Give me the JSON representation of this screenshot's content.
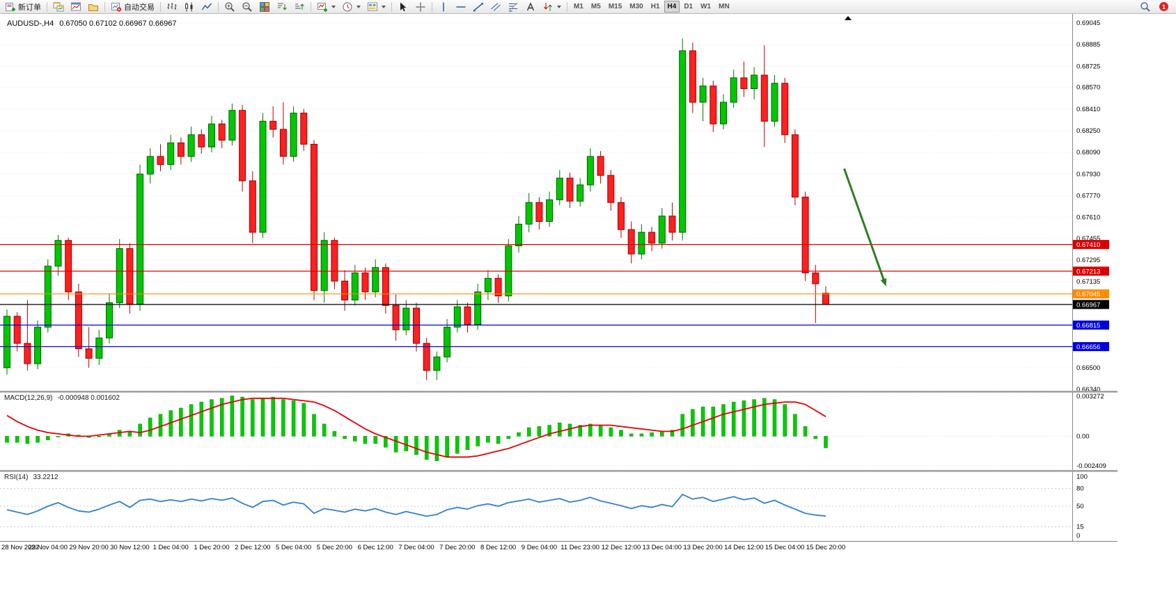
{
  "toolbar": {
    "new_order_label": "新订单",
    "autotrading_label": "自动交易",
    "timeframes": [
      "M1",
      "M5",
      "M15",
      "M30",
      "H1",
      "H4",
      "D1",
      "W1",
      "MN"
    ],
    "active_timeframe": "H4",
    "notification_count": "1"
  },
  "chart_data": [
    {
      "type": "candlestick",
      "title": "AUDUSD-,H4",
      "ohlc_text": "0.67050 0.67102 0.66967 0.66967",
      "current": {
        "open": 0.6705,
        "high": 0.67102,
        "low": 0.66967,
        "close": 0.66967
      },
      "ylim": [
        0.6633,
        0.69112
      ],
      "price_axis_labels": [
        "0.69045",
        "0.68885",
        "0.68725",
        "0.68570",
        "0.68410",
        "0.68250",
        "0.68090",
        "0.67930",
        "0.67770",
        "0.67610",
        "0.67455",
        "0.67295",
        "0.67135",
        "0.66975",
        "0.66815",
        "0.66656",
        "0.66500",
        "0.66340"
      ],
      "time_labels": [
        "28 Nov 2022",
        "29 Nov 04:00",
        "29 Nov 20:00",
        "30 Nov 12:00",
        "1 Dec 04:00",
        "1 Dec 20:00",
        "2 Dec 12:00",
        "5 Dec 04:00",
        "5 Dec 20:00",
        "6 Dec 12:00",
        "7 Dec 04:00",
        "7 Dec 20:00",
        "8 Dec 12:00",
        "9 Dec 04:00",
        "11 Dec 23:00",
        "12 Dec 12:00",
        "13 Dec 04:00",
        "13 Dec 20:00",
        "14 Dec 12:00",
        "15 Dec 04:00",
        "15 Dec 20:00"
      ],
      "candles": [
        [
          0.665,
          0.6693,
          0.6645,
          0.6688
        ],
        [
          0.6688,
          0.6691,
          0.6662,
          0.6668
        ],
        [
          0.6668,
          0.67,
          0.6648,
          0.6653
        ],
        [
          0.6653,
          0.6685,
          0.6649,
          0.668
        ],
        [
          0.668,
          0.673,
          0.6676,
          0.6725
        ],
        [
          0.6725,
          0.6748,
          0.6718,
          0.6744
        ],
        [
          0.6744,
          0.6746,
          0.67,
          0.6706
        ],
        [
          0.6706,
          0.6712,
          0.6658,
          0.6664
        ],
        [
          0.6664,
          0.668,
          0.665,
          0.6657
        ],
        [
          0.6657,
          0.6678,
          0.6652,
          0.6672
        ],
        [
          0.6672,
          0.6705,
          0.6668,
          0.6698
        ],
        [
          0.6698,
          0.6745,
          0.6694,
          0.6738
        ],
        [
          0.6738,
          0.6742,
          0.669,
          0.6697
        ],
        [
          0.6697,
          0.68,
          0.6692,
          0.6793
        ],
        [
          0.6793,
          0.6812,
          0.6786,
          0.6806
        ],
        [
          0.6806,
          0.6815,
          0.6795,
          0.68
        ],
        [
          0.68,
          0.6822,
          0.6796,
          0.6816
        ],
        [
          0.6816,
          0.682,
          0.68,
          0.6806
        ],
        [
          0.6806,
          0.6828,
          0.6802,
          0.6822
        ],
        [
          0.6822,
          0.6826,
          0.6808,
          0.6813
        ],
        [
          0.6813,
          0.6836,
          0.6809,
          0.683
        ],
        [
          0.683,
          0.6833,
          0.6812,
          0.6818
        ],
        [
          0.6818,
          0.6845,
          0.6814,
          0.684
        ],
        [
          0.684,
          0.6844,
          0.678,
          0.6788
        ],
        [
          0.6788,
          0.6795,
          0.6742,
          0.675
        ],
        [
          0.675,
          0.6838,
          0.6746,
          0.6832
        ],
        [
          0.6832,
          0.6843,
          0.682,
          0.6826
        ],
        [
          0.6826,
          0.6846,
          0.68,
          0.6806
        ],
        [
          0.6806,
          0.6843,
          0.6802,
          0.6838
        ],
        [
          0.6838,
          0.6841,
          0.681,
          0.6815
        ],
        [
          0.6815,
          0.6818,
          0.67,
          0.6707
        ],
        [
          0.6707,
          0.675,
          0.6698,
          0.6744
        ],
        [
          0.6744,
          0.6746,
          0.6708,
          0.6714
        ],
        [
          0.6714,
          0.6722,
          0.6692,
          0.67
        ],
        [
          0.67,
          0.6726,
          0.6696,
          0.672
        ],
        [
          0.672,
          0.6724,
          0.67,
          0.6706
        ],
        [
          0.6706,
          0.673,
          0.6702,
          0.6724
        ],
        [
          0.6724,
          0.6727,
          0.669,
          0.6696
        ],
        [
          0.6696,
          0.6704,
          0.667,
          0.6678
        ],
        [
          0.6678,
          0.67,
          0.6674,
          0.6694
        ],
        [
          0.6694,
          0.6698,
          0.6662,
          0.6668
        ],
        [
          0.6668,
          0.6672,
          0.6641,
          0.6648
        ],
        [
          0.6648,
          0.6662,
          0.6641,
          0.6658
        ],
        [
          0.6658,
          0.6686,
          0.6654,
          0.668
        ],
        [
          0.668,
          0.67,
          0.6676,
          0.6695
        ],
        [
          0.6695,
          0.6698,
          0.6676,
          0.6682
        ],
        [
          0.6682,
          0.6712,
          0.6678,
          0.6706
        ],
        [
          0.6706,
          0.6722,
          0.67,
          0.6716
        ],
        [
          0.6716,
          0.6719,
          0.6698,
          0.6703
        ],
        [
          0.6703,
          0.6745,
          0.6699,
          0.674
        ],
        [
          0.674,
          0.6762,
          0.6735,
          0.6756
        ],
        [
          0.6756,
          0.6779,
          0.675,
          0.6772
        ],
        [
          0.6772,
          0.6776,
          0.6752,
          0.6758
        ],
        [
          0.6758,
          0.678,
          0.6754,
          0.6774
        ],
        [
          0.6774,
          0.6796,
          0.677,
          0.679
        ],
        [
          0.679,
          0.6794,
          0.6768,
          0.6773
        ],
        [
          0.6773,
          0.679,
          0.6769,
          0.6785
        ],
        [
          0.6785,
          0.6812,
          0.678,
          0.6806
        ],
        [
          0.6806,
          0.681,
          0.6786,
          0.6792
        ],
        [
          0.6792,
          0.6796,
          0.6766,
          0.6772
        ],
        [
          0.6772,
          0.6776,
          0.6746,
          0.6752
        ],
        [
          0.6752,
          0.6758,
          0.6727,
          0.6734
        ],
        [
          0.6734,
          0.6756,
          0.673,
          0.675
        ],
        [
          0.675,
          0.6754,
          0.6736,
          0.6742
        ],
        [
          0.6742,
          0.6768,
          0.6738,
          0.6762
        ],
        [
          0.6762,
          0.6772,
          0.6744,
          0.675
        ],
        [
          0.675,
          0.6893,
          0.6744,
          0.6884
        ],
        [
          0.6884,
          0.689,
          0.6838,
          0.6846
        ],
        [
          0.6846,
          0.6864,
          0.6832,
          0.6858
        ],
        [
          0.6858,
          0.6862,
          0.6824,
          0.683
        ],
        [
          0.683,
          0.6852,
          0.6826,
          0.6846
        ],
        [
          0.6846,
          0.687,
          0.6842,
          0.6864
        ],
        [
          0.6864,
          0.6876,
          0.685,
          0.6856
        ],
        [
          0.6856,
          0.6872,
          0.6848,
          0.6866
        ],
        [
          0.6866,
          0.6888,
          0.6813,
          0.6832
        ],
        [
          0.6832,
          0.6866,
          0.6828,
          0.686
        ],
        [
          0.686,
          0.6864,
          0.6816,
          0.6822
        ],
        [
          0.6822,
          0.6826,
          0.677,
          0.6776
        ],
        [
          0.6776,
          0.678,
          0.6714,
          0.672
        ],
        [
          0.672,
          0.6726,
          0.6683,
          0.6712
        ],
        [
          0.6705,
          0.67102,
          0.66967,
          0.66967
        ]
      ],
      "up_color": "#00C800",
      "down_color": "#FF2020",
      "hlines": [
        {
          "price": 0.6741,
          "label": "0.67410",
          "color": "#dd0000"
        },
        {
          "price": 0.67213,
          "label": "0.67213",
          "color": "#dd0000"
        },
        {
          "price": 0.67045,
          "label": "0.67045",
          "color": "#ff8c00"
        },
        {
          "price": 0.66967,
          "label": "0.66967",
          "color": "#000000"
        },
        {
          "price": 0.66815,
          "label": "0.66815",
          "color": "#0000dd"
        },
        {
          "price": 0.66656,
          "label": "0.66656",
          "color": "#0000dd"
        }
      ],
      "arrow": {
        "x1_bar": 81.8,
        "price1": 0.6797,
        "x2_bar": 85.8,
        "price2": 0.6712,
        "color": "#2E7D1F"
      }
    },
    {
      "type": "macd",
      "label": "MACD(12,26,9)",
      "values_text": "-0.000948 0.001602",
      "ylim": [
        -0.00276,
        0.0036
      ],
      "axis_labels": [
        "0.003272",
        "0.00",
        "-0.002409"
      ],
      "unit": 0.0001,
      "histogram_1e4": [
        -5,
        -5,
        -6,
        -5,
        -3,
        0,
        2,
        1,
        -1,
        0,
        2,
        5,
        4,
        10,
        15,
        18,
        21,
        23,
        26,
        28,
        30,
        31,
        33,
        32,
        30,
        31,
        32,
        30,
        29,
        27,
        18,
        10,
        4,
        -2,
        -4,
        -6,
        -6,
        -9,
        -13,
        -12,
        -15,
        -19,
        -20,
        -17,
        -14,
        -11,
        -8,
        -5,
        -6,
        -2,
        3,
        7,
        8,
        9,
        11,
        10,
        9,
        10,
        9,
        7,
        5,
        2,
        2,
        3,
        4,
        5,
        18,
        22,
        24,
        24,
        26,
        28,
        29,
        30,
        31,
        30,
        26,
        18,
        8,
        -2,
        -9.48
      ],
      "signal_1e4": [
        17,
        12,
        8,
        5,
        3,
        2,
        1,
        0,
        0,
        1,
        2,
        3,
        4,
        3,
        5,
        8,
        11,
        14,
        17,
        20,
        23,
        26,
        28,
        30,
        31,
        31,
        31,
        31,
        30,
        29,
        28,
        25,
        21,
        16,
        11,
        6,
        2,
        -1,
        -4,
        -7,
        -10,
        -13,
        -15,
        -17,
        -17,
        -17,
        -16,
        -14,
        -12,
        -10,
        -7,
        -4,
        -1,
        2,
        4,
        6,
        8,
        9,
        9,
        9,
        8,
        7,
        6,
        5,
        4,
        4,
        6,
        9,
        12,
        15,
        18,
        20,
        22,
        24,
        26,
        27,
        28,
        28,
        26,
        21,
        16.02
      ],
      "histogram_color": "#00CC00",
      "signal_color": "#e60000"
    },
    {
      "type": "line",
      "label": "RSI(14)",
      "value_text": "33.2212",
      "ylim": [
        -9,
        109
      ],
      "levels": [
        80,
        50,
        15
      ],
      "axis_labels": [
        "100",
        "80",
        "50",
        "15",
        "0"
      ],
      "values": [
        44,
        40,
        36,
        42,
        50,
        56,
        48,
        42,
        40,
        45,
        52,
        58,
        48,
        60,
        62,
        58,
        61,
        58,
        62,
        59,
        63,
        60,
        64,
        55,
        48,
        58,
        60,
        52,
        57,
        54,
        38,
        46,
        43,
        40,
        45,
        42,
        46,
        40,
        36,
        41,
        37,
        33,
        36,
        44,
        48,
        45,
        51,
        54,
        50,
        56,
        59,
        62,
        57,
        60,
        63,
        57,
        60,
        65,
        59,
        55,
        51,
        46,
        51,
        48,
        53,
        49,
        70,
        62,
        65,
        58,
        62,
        66,
        61,
        64,
        55,
        60,
        52,
        45,
        38,
        35,
        33.2212
      ],
      "line_color": "#2E7FD0"
    }
  ]
}
